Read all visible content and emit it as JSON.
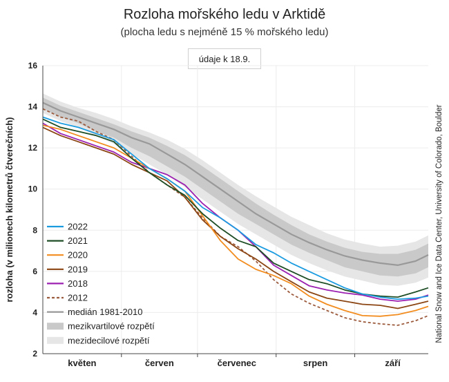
{
  "header": {
    "title": "Rozloha mořského ledu v Arktidě",
    "subtitle": "(plocha ledu s nejméně 15 % mořského ledu)",
    "date_note": "údaje k 18.9."
  },
  "credit": "National Snow and Ice Data Center, University of Colorado, Boulder",
  "chart_data": {
    "type": "line",
    "title": "Rozloha mořského ledu v Arktidě",
    "subtitle": "(plocha ledu s nejméně 15 % mořského ledu)",
    "ylabel": "rozloha (v milionech kilometrů čtverečních)",
    "xlabel": "",
    "ylim": [
      2,
      16
    ],
    "yticks": [
      2,
      4,
      6,
      8,
      10,
      12,
      14,
      16
    ],
    "xlim": [
      1,
      153
    ],
    "month_labels": [
      "květen",
      "červen",
      "červenec",
      "srpen",
      "září"
    ],
    "month_starts": [
      1,
      32,
      62,
      93,
      124,
      154
    ],
    "grid": true,
    "legend_position": "bottom-left",
    "x": [
      1,
      8,
      15,
      22,
      29,
      36,
      43,
      50,
      57,
      64,
      71,
      78,
      85,
      92,
      99,
      106,
      113,
      120,
      127,
      134,
      141,
      148,
      153
    ],
    "series": [
      {
        "name": "2022",
        "color": "#1a9be0",
        "dash": false,
        "values": [
          13.5,
          13.2,
          13.0,
          12.7,
          12.4,
          11.7,
          11.0,
          10.5,
          9.9,
          9.1,
          8.6,
          8.0,
          7.3,
          6.9,
          6.4,
          6.0,
          5.6,
          5.2,
          4.9,
          4.75,
          4.65,
          4.7,
          4.8
        ]
      },
      {
        "name": "2021",
        "color": "#1d4d24",
        "dash": false,
        "values": [
          13.4,
          13.0,
          12.8,
          12.6,
          12.3,
          11.5,
          10.8,
          10.2,
          9.7,
          8.8,
          8.1,
          7.5,
          7.2,
          6.4,
          6.0,
          5.6,
          5.4,
          5.1,
          4.9,
          4.8,
          4.75,
          5.0,
          5.2
        ]
      },
      {
        "name": "2020",
        "color": "#f28c1e",
        "dash": false,
        "values": [
          13.1,
          12.9,
          12.6,
          12.3,
          12.0,
          11.5,
          11.0,
          10.5,
          9.9,
          8.7,
          7.5,
          6.6,
          6.1,
          5.8,
          5.4,
          4.8,
          4.4,
          4.1,
          3.85,
          3.82,
          3.9,
          4.1,
          4.3
        ]
      },
      {
        "name": "2019",
        "color": "#8b4513",
        "dash": false,
        "values": [
          13.0,
          12.6,
          12.3,
          12.0,
          11.7,
          11.2,
          10.8,
          10.4,
          9.6,
          8.5,
          7.7,
          7.1,
          6.6,
          6.0,
          5.5,
          5.0,
          4.7,
          4.55,
          4.4,
          4.35,
          4.2,
          4.4,
          4.55
        ]
      },
      {
        "name": "2018",
        "color": "#9b1fb0",
        "dash": false,
        "values": [
          13.2,
          12.7,
          12.4,
          12.1,
          11.8,
          11.3,
          11.0,
          10.7,
          10.2,
          9.3,
          8.6,
          8.0,
          7.2,
          6.3,
          5.8,
          5.3,
          5.1,
          4.95,
          4.85,
          4.65,
          4.55,
          4.65,
          4.85
        ]
      },
      {
        "name": "2012",
        "color": "#9c5a3c",
        "dash": true,
        "values": [
          13.9,
          13.5,
          13.3,
          12.8,
          12.4,
          11.6,
          10.8,
          10.2,
          9.6,
          8.6,
          7.7,
          7.2,
          6.5,
          5.6,
          4.9,
          4.45,
          4.1,
          3.75,
          3.55,
          3.45,
          3.38,
          3.6,
          3.85
        ]
      }
    ],
    "median": {
      "name": "medián 1981-2010",
      "color": "#999999",
      "values": [
        14.2,
        13.8,
        13.5,
        13.2,
        12.9,
        12.5,
        12.2,
        11.7,
        11.2,
        10.6,
        10.0,
        9.4,
        8.8,
        8.3,
        7.8,
        7.4,
        7.05,
        6.75,
        6.55,
        6.4,
        6.3,
        6.5,
        6.8
      ]
    },
    "interquartile_band": {
      "name": "mezikvartilové rozpětí",
      "color": "#c9c9c9",
      "lower": [
        13.9,
        13.5,
        13.2,
        12.8,
        12.5,
        12.0,
        11.6,
        11.1,
        10.6,
        10.0,
        9.4,
        8.8,
        8.3,
        7.8,
        7.3,
        6.9,
        6.55,
        6.2,
        6.0,
        5.8,
        5.75,
        5.9,
        6.2
      ],
      "upper": [
        14.45,
        14.05,
        13.75,
        13.45,
        13.15,
        12.8,
        12.5,
        12.1,
        11.65,
        11.1,
        10.5,
        9.9,
        9.3,
        8.75,
        8.25,
        7.8,
        7.45,
        7.15,
        6.95,
        6.85,
        6.85,
        7.05,
        7.35
      ]
    },
    "interdecile_band": {
      "name": "mezidecilové rozpětí",
      "color": "#e6e6e6",
      "lower": [
        13.7,
        13.3,
        13.0,
        12.6,
        12.2,
        11.7,
        11.2,
        10.7,
        10.1,
        9.5,
        8.9,
        8.3,
        7.8,
        7.3,
        6.8,
        6.4,
        6.05,
        5.75,
        5.55,
        5.35,
        5.3,
        5.45,
        5.7
      ],
      "upper": [
        14.65,
        14.25,
        13.95,
        13.7,
        13.4,
        13.05,
        12.75,
        12.4,
        11.95,
        11.4,
        10.8,
        10.2,
        9.65,
        9.15,
        8.65,
        8.25,
        7.85,
        7.55,
        7.35,
        7.2,
        7.25,
        7.45,
        7.75
      ]
    },
    "legend_entries": [
      "2022",
      "2021",
      "2020",
      "2019",
      "2018",
      "2012",
      "medián 1981-2010",
      "mezikvartilové rozpětí",
      "mezidecilové rozpětí"
    ]
  }
}
